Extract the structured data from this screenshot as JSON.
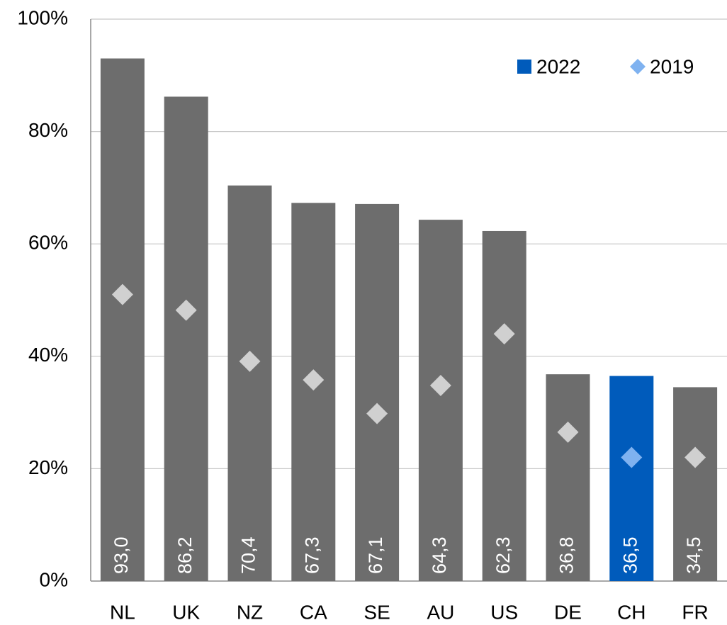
{
  "chart_data": {
    "type": "bar",
    "categories": [
      "NL",
      "UK",
      "NZ",
      "CA",
      "SE",
      "AU",
      "US",
      "DE",
      "CH",
      "FR"
    ],
    "series": [
      {
        "name": "2022",
        "color": "#005bbb",
        "kind": "bar",
        "point_colors": [
          "#6d6d6d",
          "#6d6d6d",
          "#6d6d6d",
          "#6d6d6d",
          "#6d6d6d",
          "#6d6d6d",
          "#6d6d6d",
          "#6d6d6d",
          "#005bbb",
          "#6d6d6d"
        ],
        "values": [
          93.0,
          86.2,
          70.4,
          67.3,
          67.1,
          64.3,
          62.3,
          36.8,
          36.5,
          34.5
        ],
        "value_labels": [
          "93,0",
          "86,2",
          "70,4",
          "67,3",
          "67,1",
          "64,3",
          "62,3",
          "36,8",
          "36,5",
          "34,5"
        ]
      },
      {
        "name": "2019",
        "color": "#7fb2f0",
        "kind": "diamond",
        "point_colors": [
          "#d0d0d0",
          "#d0d0d0",
          "#d0d0d0",
          "#d0d0d0",
          "#d0d0d0",
          "#d0d0d0",
          "#d0d0d0",
          "#d0d0d0",
          "#7fb2f0",
          "#d0d0d0"
        ],
        "values": [
          51.0,
          48.2,
          39.1,
          35.8,
          29.8,
          34.8,
          44.0,
          26.5,
          22.0,
          22.0
        ]
      }
    ],
    "ylim": [
      0,
      100
    ],
    "yticks": [
      {
        "value": 0,
        "label": "0%"
      },
      {
        "value": 20,
        "label": "20%"
      },
      {
        "value": 40,
        "label": "40%"
      },
      {
        "value": 60,
        "label": "60%"
      },
      {
        "value": 80,
        "label": "80%"
      },
      {
        "value": 100,
        "label": "100%"
      }
    ],
    "grid": true,
    "legend": "top-right"
  }
}
